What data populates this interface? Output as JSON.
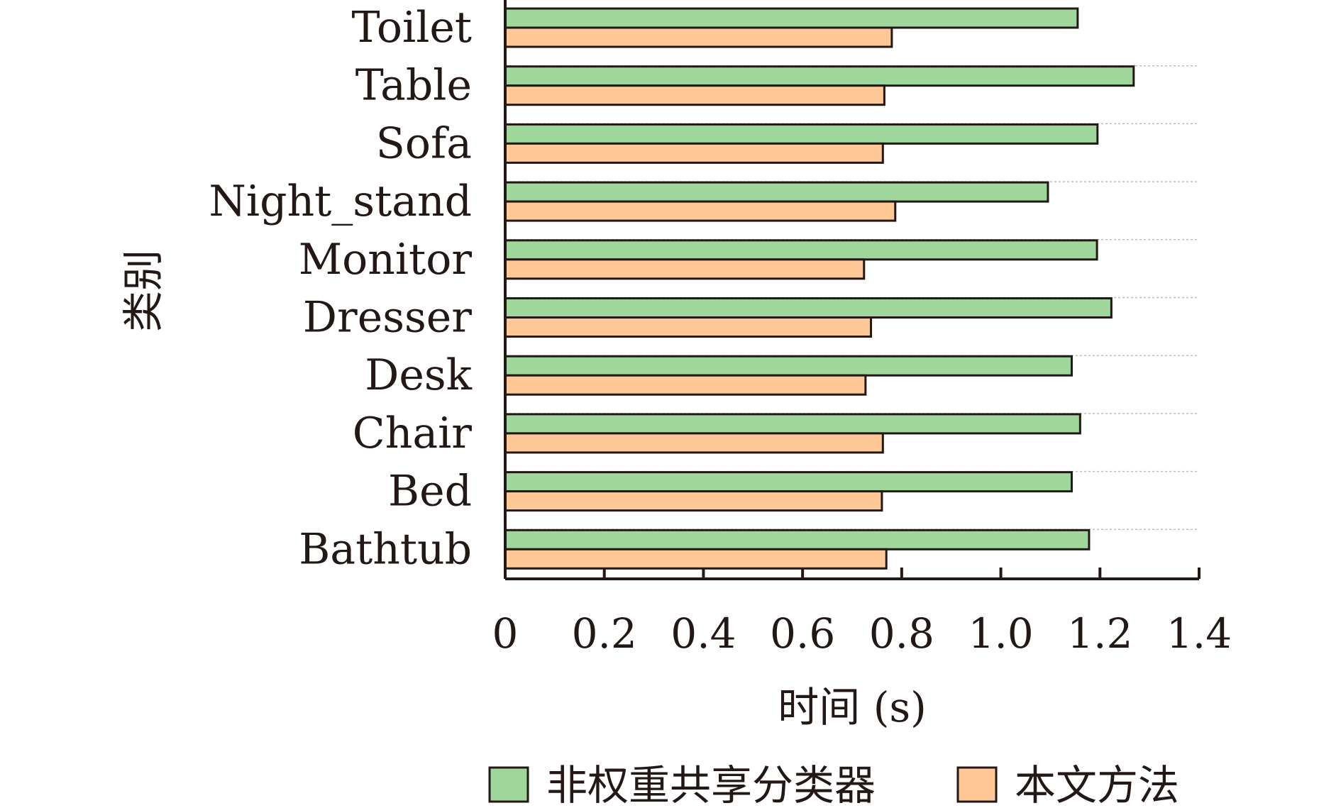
{
  "chart_data": {
    "type": "bar",
    "orientation": "horizontal",
    "categories": [
      "Toilet",
      "Table",
      "Sofa",
      "Night_stand",
      "Monitor",
      "Dresser",
      "Desk",
      "Chair",
      "Bed",
      "Bathtub"
    ],
    "series": [
      {
        "name": "非权重共享分类器",
        "color": "#9fd69c",
        "values": [
          1.155,
          1.268,
          1.195,
          1.095,
          1.194,
          1.223,
          1.143,
          1.16,
          1.143,
          1.178
        ]
      },
      {
        "name": "本文方法",
        "color": "#fec897",
        "values": [
          0.78,
          0.765,
          0.762,
          0.787,
          0.724,
          0.738,
          0.727,
          0.762,
          0.76,
          0.769
        ]
      }
    ],
    "xlabel": "时间 (s)",
    "ylabel": "类别",
    "xlim": [
      0,
      1.4
    ],
    "xticks": [
      "0",
      "0.2",
      "0.4",
      "0.6",
      "0.8",
      "1.0",
      "1.2",
      "1.4"
    ],
    "grid": "horizontal dotted",
    "legend_position": "bottom"
  }
}
